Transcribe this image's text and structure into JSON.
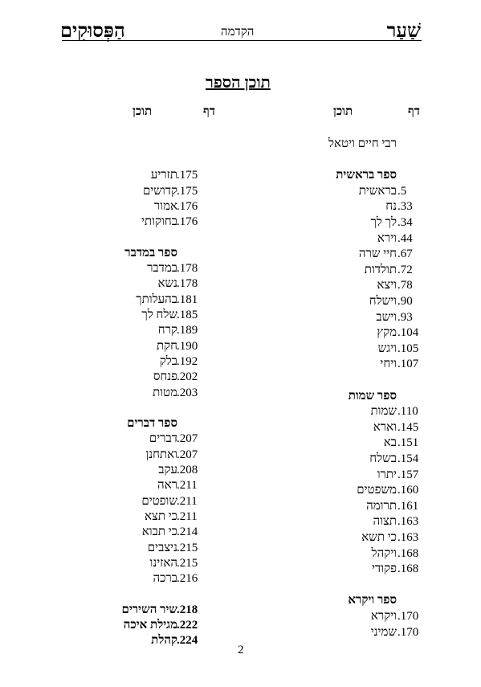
{
  "header": {
    "title_right": "שַׁעַר",
    "title_left": "הַפְּסוּקִים",
    "section": "הקדמה"
  },
  "toc": {
    "title": "תוכן הספר",
    "col_page_label": "דף",
    "col_content_label": "תוכן"
  },
  "right_column": [
    {
      "page": "",
      "text": "רבי חיים ויטאל",
      "bold": false
    },
    {
      "page": "",
      "text": "",
      "bold": false
    },
    {
      "page": "",
      "text": "ספר בראשית",
      "bold": true
    },
    {
      "page": ".5",
      "text": "בראשית",
      "bold": false
    },
    {
      "page": ".33",
      "text": "נח",
      "bold": false
    },
    {
      "page": ".34",
      "text": "לך לך",
      "bold": false
    },
    {
      "page": ".44",
      "text": "וירא",
      "bold": false
    },
    {
      "page": ".67",
      "text": "חיי שרה",
      "bold": false
    },
    {
      "page": ".72",
      "text": "תולדות",
      "bold": false
    },
    {
      "page": ".78",
      "text": "ויצא",
      "bold": false
    },
    {
      "page": ".90",
      "text": "וישלח",
      "bold": false
    },
    {
      "page": ".93",
      "text": "וישב",
      "bold": false
    },
    {
      "page": ".104",
      "text": "מקץ",
      "bold": false
    },
    {
      "page": ".105",
      "text": "ויגש",
      "bold": false
    },
    {
      "page": ".107",
      "text": "ויחי",
      "bold": false
    },
    {
      "page": "",
      "text": "",
      "bold": false
    },
    {
      "page": "",
      "text": "ספר שמות",
      "bold": true
    },
    {
      "page": ".110",
      "text": "שמות",
      "bold": false
    },
    {
      "page": ".145",
      "text": "וארא",
      "bold": false
    },
    {
      "page": ".151",
      "text": "בא",
      "bold": false
    },
    {
      "page": ".154",
      "text": "בשלח",
      "bold": false
    },
    {
      "page": ".157",
      "text": "יתרו",
      "bold": false
    },
    {
      "page": ".160",
      "text": "משפטים",
      "bold": false
    },
    {
      "page": ".161",
      "text": "תרומה",
      "bold": false
    },
    {
      "page": ".163",
      "text": "תצוה",
      "bold": false
    },
    {
      "page": ".163",
      "text": "כי תשא",
      "bold": false
    },
    {
      "page": ".168",
      "text": "ויקהל",
      "bold": false
    },
    {
      "page": ".168",
      "text": "פקודי",
      "bold": false
    },
    {
      "page": "",
      "text": "",
      "bold": false
    },
    {
      "page": "",
      "text": "ספר ויקרא",
      "bold": true
    },
    {
      "page": ".170",
      "text": "ויקרא",
      "bold": false
    },
    {
      "page": ".170",
      "text": "שמיני",
      "bold": false
    }
  ],
  "left_column": [
    {
      "page": "",
      "text": "",
      "bold": false
    },
    {
      "page": ".175",
      "text": "תזריע",
      "bold": false
    },
    {
      "page": ".175",
      "text": "קדושים",
      "bold": false
    },
    {
      "page": ".176",
      "text": "אמור",
      "bold": false
    },
    {
      "page": ".176",
      "text": "בחוקותי",
      "bold": false
    },
    {
      "page": "",
      "text": "",
      "bold": false
    },
    {
      "page": "",
      "text": "ספר במדבר",
      "bold": true
    },
    {
      "page": ".178",
      "text": "במדבר",
      "bold": false
    },
    {
      "page": ".178",
      "text": "נשא",
      "bold": false
    },
    {
      "page": ".181",
      "text": "בהעלותך",
      "bold": false
    },
    {
      "page": ".185",
      "text": "שלח לך",
      "bold": false
    },
    {
      "page": ".189",
      "text": "קרח",
      "bold": false
    },
    {
      "page": ".190",
      "text": "חקת",
      "bold": false
    },
    {
      "page": ".192",
      "text": "בלק",
      "bold": false
    },
    {
      "page": ".202",
      "text": "פנחס",
      "bold": false
    },
    {
      "page": ".203",
      "text": "מטות",
      "bold": false
    },
    {
      "page": "",
      "text": "",
      "bold": false
    },
    {
      "page": "",
      "text": "ספר דברים",
      "bold": true
    },
    {
      "page": ".207",
      "text": "דברים",
      "bold": false
    },
    {
      "page": ".207",
      "text": "ואתחנן",
      "bold": false
    },
    {
      "page": ".208",
      "text": "עקב",
      "bold": false
    },
    {
      "page": ".211",
      "text": "ראה",
      "bold": false
    },
    {
      "page": ".211",
      "text": "שופטים",
      "bold": false
    },
    {
      "page": ".211",
      "text": "כי תצא",
      "bold": false
    },
    {
      "page": ".214",
      "text": "כי תבוא",
      "bold": false
    },
    {
      "page": ".215",
      "text": "ניצבים",
      "bold": false
    },
    {
      "page": ".215",
      "text": "האזינו",
      "bold": false
    },
    {
      "page": ".216",
      "text": "ברכה",
      "bold": false
    },
    {
      "page": "",
      "text": "",
      "bold": false
    },
    {
      "page": ".218",
      "text": "שיר השירים",
      "bold": true
    },
    {
      "page": ".222",
      "text": "מגילת איכה",
      "bold": true
    },
    {
      "page": ".224",
      "text": "קהלת",
      "bold": true
    }
  ],
  "footer": {
    "page_number": "2"
  }
}
